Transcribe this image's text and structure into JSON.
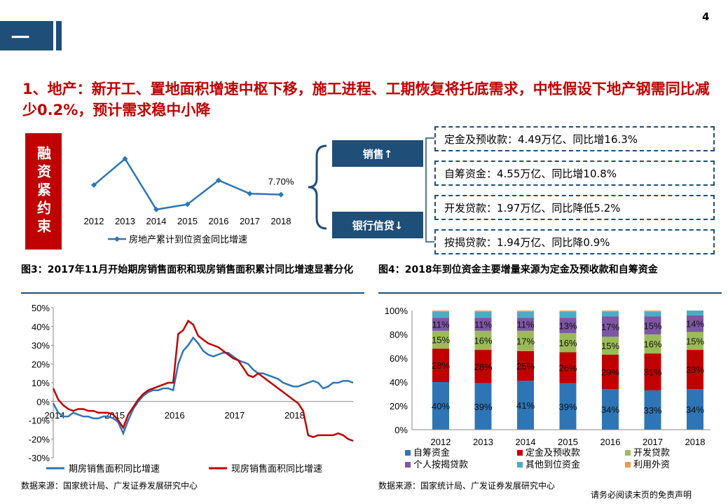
{
  "header": {
    "section_glyph": "一",
    "page_number": "4",
    "accent_color": "#1f4e79"
  },
  "headline": "1、地产：新开工、置地面积增速中枢下移，施工进程、工期恢复将托底需求，中性假设下地产钢需同比减少0.2%，预计需求稳中小降",
  "left_panel": {
    "vertical_label": "融资紧约束"
  },
  "center": {
    "sales_label": "销售↑",
    "bank_label": "银行信贷↓"
  },
  "right_boxes": [
    "定金及预收款：4.49万亿、同比增16.3%",
    "自筹资金：4.55万亿、同比增10.8%",
    "开发贷款：1.97万亿、同比降低5.2%",
    "按揭贷款：1.94万亿、同比降0.9%"
  ],
  "fig3": {
    "title": "图3：2017年11月开始期房销售面积和现房销售面积累计同比增速显著分化",
    "source": "数据来源：国家统计局、广发证券发展研究中心"
  },
  "fig4": {
    "title": "图4：2018年到位资金主要增量来源为定金及预收款和自筹资金",
    "source": "数据来源：国家统计局、广发证券发展研究中心"
  },
  "disclaimer": "请务必阅读末页的免责声明",
  "chart_data": [
    {
      "type": "line",
      "categories": [
        "2012",
        "2013",
        "2014",
        "2015",
        "2016",
        "2017",
        "2018"
      ],
      "series": [
        {
          "name": "房地产累计到位资金同比增速",
          "values": [
            12.7,
            26.5,
            -0.1,
            2.6,
            15.2,
            8.2,
            7.7
          ],
          "color": "#2e75b6"
        }
      ],
      "annotations": [
        {
          "category": "2018",
          "text": "7.70%"
        }
      ],
      "ylim": [
        -2,
        30
      ],
      "legend": "bottom",
      "grid": false
    },
    {
      "type": "line",
      "x_ticks": [
        "2014",
        "2015",
        "2016",
        "2017",
        "2018"
      ],
      "y_ticks": [
        "50%",
        "40%",
        "30%",
        "20%",
        "10%",
        "0%",
        "-10%",
        "-20%",
        "-30%"
      ],
      "ylim": [
        -30,
        50
      ],
      "x_range_months": [
        "2014-01",
        "2018-10"
      ],
      "series": [
        {
          "name": "期房销售面积同比增速",
          "color": "#2e75b6",
          "values": [
            -1,
            -6,
            -8,
            -8,
            -6,
            -7,
            -8,
            -8,
            -9,
            -9,
            -8,
            -8,
            -9,
            -11,
            -17,
            -10,
            -4,
            0,
            3,
            5,
            6,
            6,
            7,
            7,
            6,
            20,
            27,
            30,
            34,
            31,
            27,
            25,
            24,
            25,
            26,
            26,
            24,
            22,
            21,
            20,
            17,
            15,
            15,
            14,
            13,
            12,
            10,
            9,
            8,
            8,
            9,
            10,
            11,
            10,
            7,
            8,
            10,
            10,
            11,
            11,
            10
          ]
        },
        {
          "name": "现房销售面积同比增速",
          "color": "#c00000",
          "values": [
            7,
            1,
            -2,
            -4,
            -5,
            -4,
            -4,
            -5,
            -5,
            -6,
            -6,
            -6,
            -7,
            -10,
            -14,
            -7,
            -3,
            1,
            4,
            6,
            7,
            8,
            9,
            10,
            10,
            36,
            38,
            43,
            41,
            35,
            33,
            31,
            30,
            29,
            27,
            25,
            23,
            22,
            18,
            14,
            13,
            15,
            13,
            11,
            9,
            7,
            5,
            3,
            1,
            -1,
            -5,
            -18,
            -19,
            -18,
            -18,
            -18,
            -18,
            -17,
            -18,
            -20,
            -21
          ]
        }
      ],
      "legend": "bottom",
      "grid": false
    },
    {
      "type": "bar",
      "stacked": true,
      "categories": [
        "2012",
        "2013",
        "2014",
        "2015",
        "2016",
        "2017",
        "2018"
      ],
      "ylim": [
        0,
        100
      ],
      "y_ticks": [
        "0%",
        "20%",
        "40%",
        "60%",
        "80%",
        "100%"
      ],
      "series": [
        {
          "name": "自筹资金",
          "color": "#2e75b6",
          "values": [
            40,
            39,
            41,
            39,
            34,
            33,
            34
          ],
          "labels": [
            "40%",
            "39%",
            "41%",
            "39%",
            "34%",
            "33%",
            "34%"
          ]
        },
        {
          "name": "定金及预收款",
          "color": "#c00000",
          "values": [
            28,
            28,
            25,
            26,
            29,
            31,
            33
          ],
          "labels": [
            "28%",
            "28%",
            "25%",
            "26%",
            "29%",
            "31%",
            "33%"
          ]
        },
        {
          "name": "开发贷款",
          "color": "#9bbb59",
          "values": [
            15,
            16,
            17,
            16,
            15,
            16,
            15
          ],
          "labels": [
            "15%",
            "16%",
            "17%",
            "16%",
            "15%",
            "16%",
            "15%"
          ]
        },
        {
          "name": "个人按揭贷款",
          "color": "#7e57a4",
          "values": [
            11,
            11,
            11,
            13,
            17,
            15,
            14
          ],
          "labels": [
            "11%",
            "11%",
            "11%",
            "13%",
            "17%",
            "15%",
            "14%"
          ]
        },
        {
          "name": "其他到位资金",
          "color": "#4bacc6",
          "values": [
            5,
            5,
            5,
            5,
            4,
            4,
            4
          ],
          "labels": []
        },
        {
          "name": "利用外资",
          "color": "#f79646",
          "values": [
            1,
            1,
            1,
            1,
            1,
            1,
            0
          ],
          "labels": []
        }
      ],
      "legend": "bottom",
      "grid": false
    }
  ]
}
